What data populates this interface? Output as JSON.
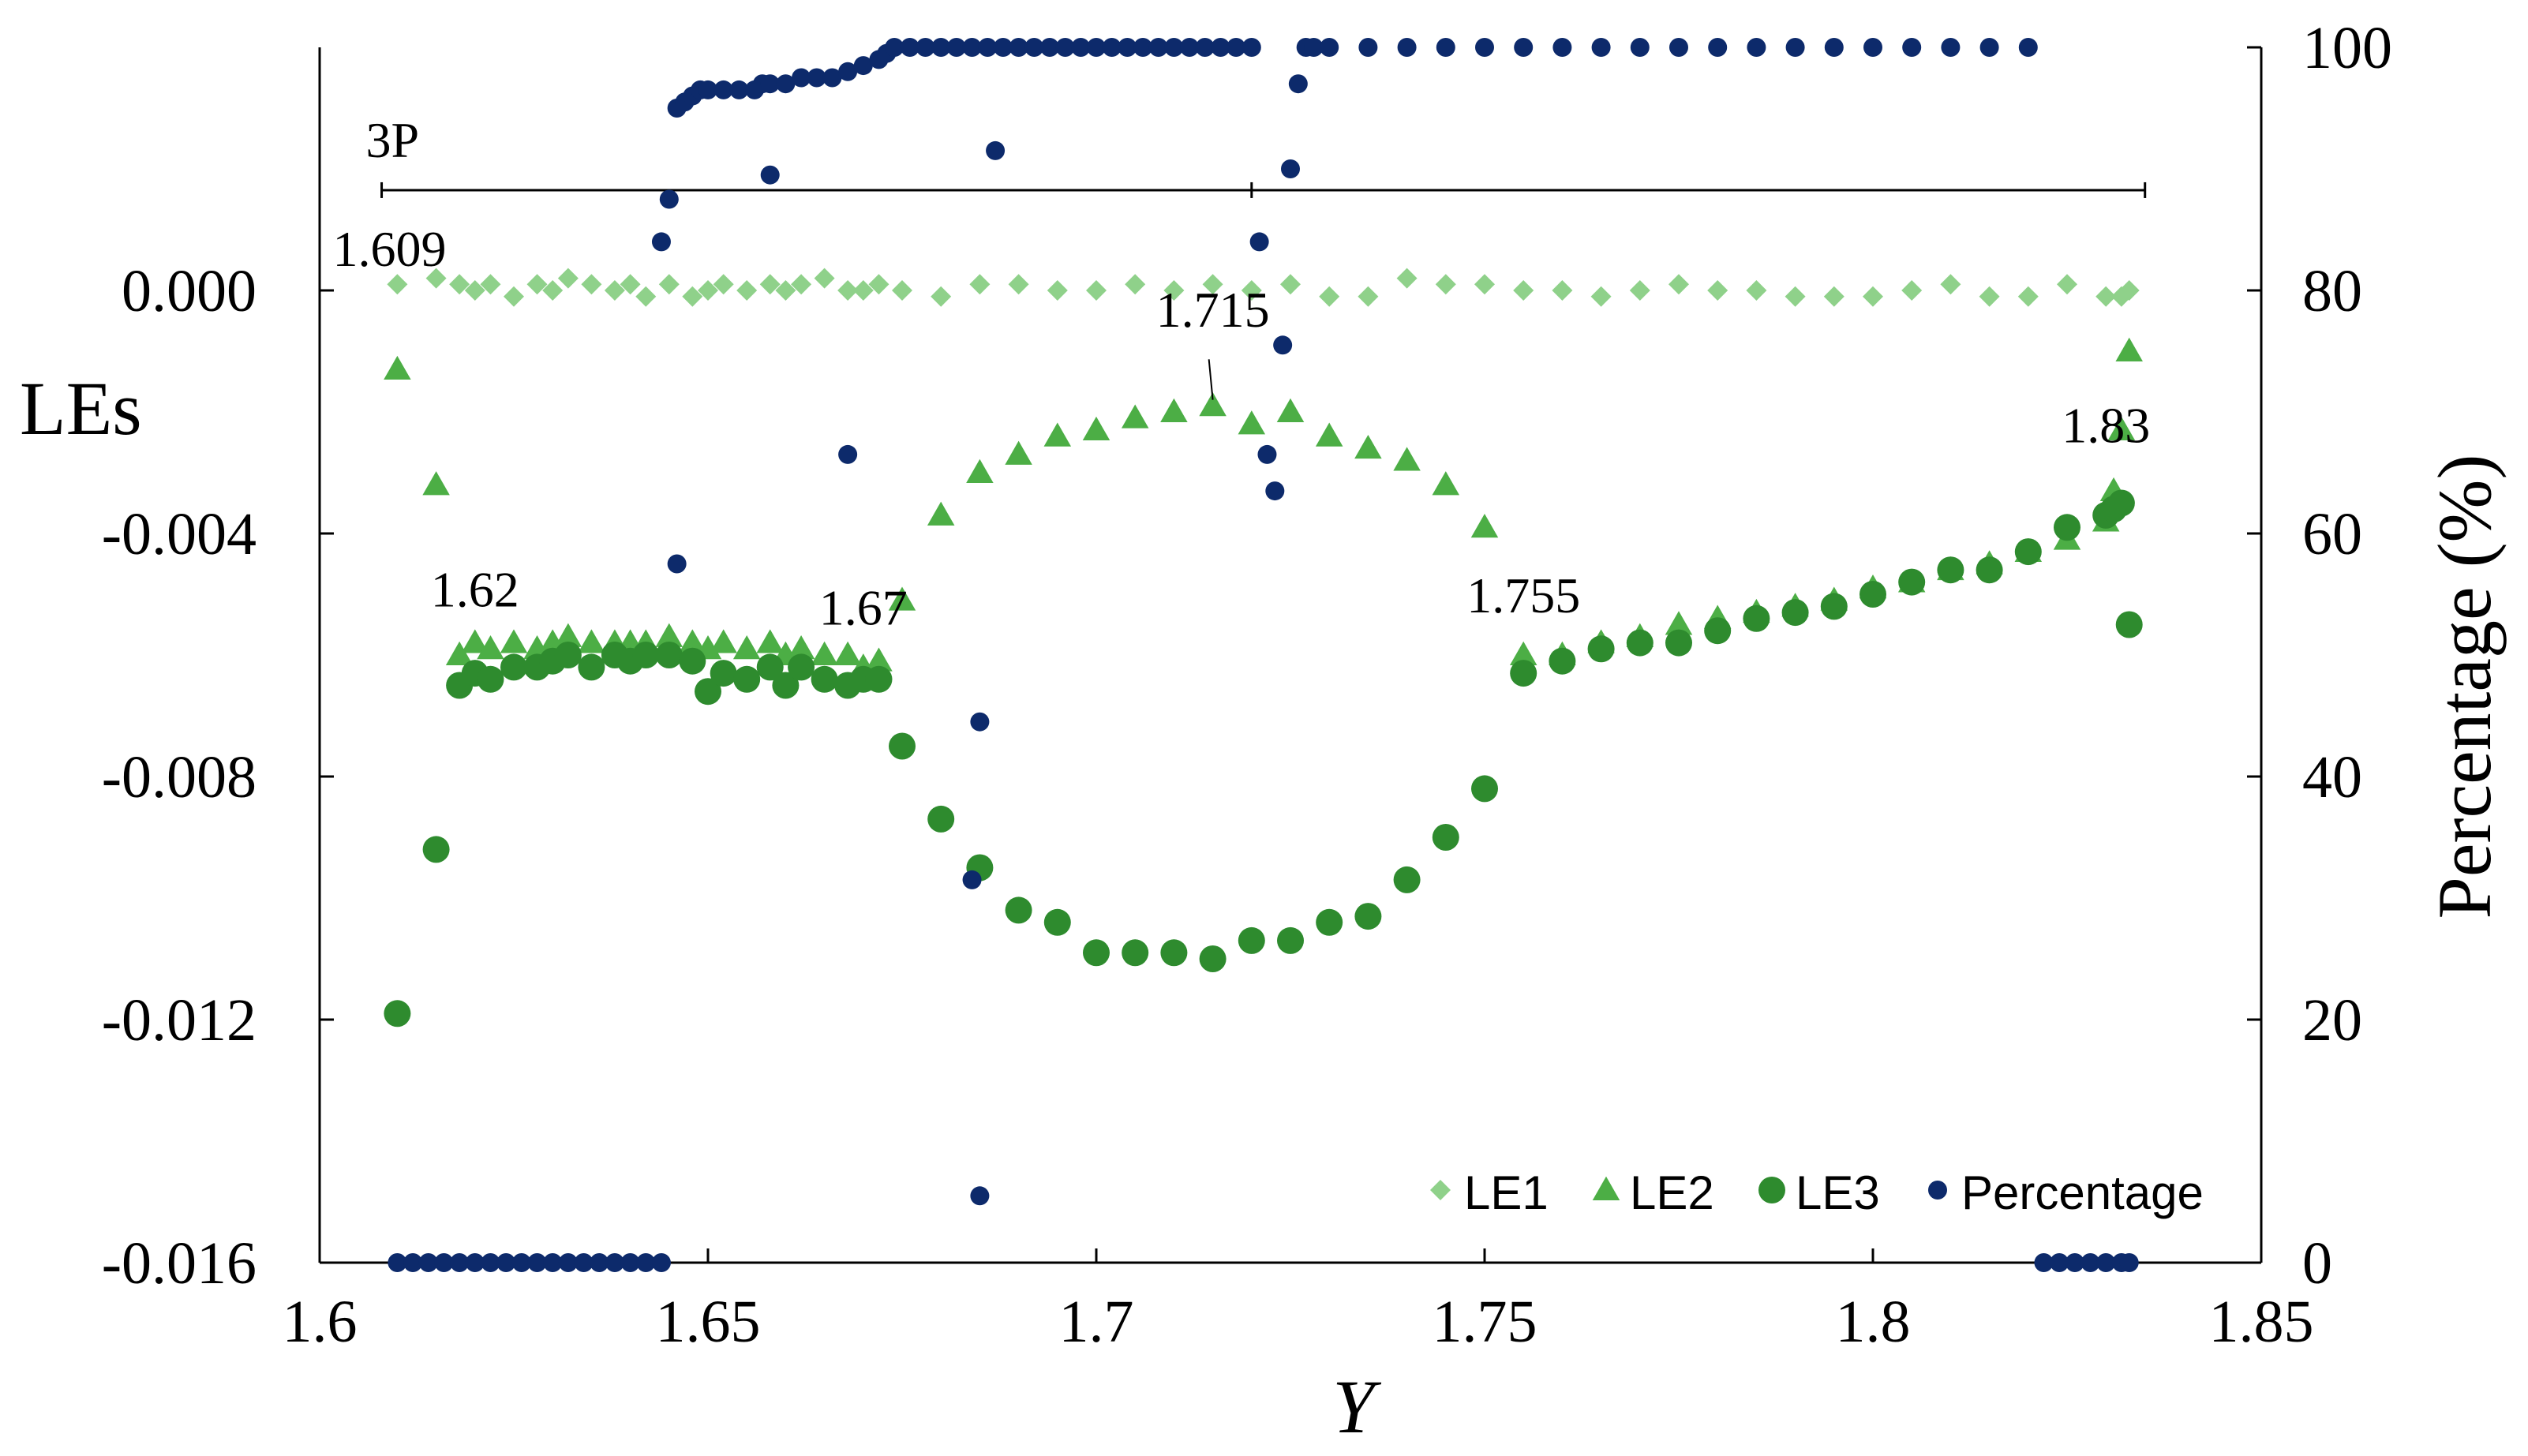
{
  "chart_data": {
    "type": "scatter",
    "title": "",
    "xlabel": "Y",
    "ylabel_left": "LEs",
    "ylabel_right": "Percentage (%)",
    "xlim": [
      1.6,
      1.85
    ],
    "ylim_left": [
      -0.016,
      0.004
    ],
    "ylim_right": [
      0,
      100
    ],
    "x_ticks": [
      "1.6",
      "1.65",
      "1.7",
      "1.75",
      "1.8",
      "1.85"
    ],
    "x_tick_values": [
      1.6,
      1.65,
      1.7,
      1.75,
      1.8,
      1.85
    ],
    "y_left_ticks": [
      "0.000",
      "-0.004",
      "-0.008",
      "-0.012",
      "-0.016"
    ],
    "y_left_tick_values": [
      0.0,
      -0.004,
      -0.008,
      -0.012,
      -0.016
    ],
    "y_right_ticks": [
      "100",
      "80",
      "60",
      "40",
      "20",
      "0"
    ],
    "y_right_tick_values": [
      100,
      80,
      60,
      40,
      20,
      0
    ],
    "grid": false,
    "legend_placement": "bottom-right",
    "colors": {
      "LE1": "#8fd18a",
      "LE2": "#4cae45",
      "LE3": "#2e8b2e",
      "Percentage": "#0d2a6b"
    },
    "period_bar": {
      "label": "3P",
      "x_range": [
        1.609,
        1.833
      ],
      "y_value": 0.00165,
      "mid_tick": 1.72
    },
    "annotations": [
      {
        "text": "1.609",
        "x": 1.609,
        "y": 0.0004
      },
      {
        "text": "1.62",
        "x": 1.62,
        "y": -0.0052
      },
      {
        "text": "1.67",
        "x": 1.67,
        "y": -0.0055
      },
      {
        "text": "1.715",
        "x": 1.715,
        "y": -0.0006
      },
      {
        "text": "1.755",
        "x": 1.755,
        "y": -0.0053
      },
      {
        "text": "1.83",
        "x": 1.83,
        "y": -0.0025
      }
    ],
    "series": [
      {
        "name": "LE1",
        "marker": "diamond",
        "x": [
          1.61,
          1.615,
          1.618,
          1.62,
          1.622,
          1.625,
          1.628,
          1.63,
          1.632,
          1.635,
          1.638,
          1.64,
          1.642,
          1.645,
          1.648,
          1.65,
          1.652,
          1.655,
          1.658,
          1.66,
          1.662,
          1.665,
          1.668,
          1.67,
          1.672,
          1.675,
          1.68,
          1.685,
          1.69,
          1.695,
          1.7,
          1.705,
          1.71,
          1.715,
          1.72,
          1.725,
          1.73,
          1.735,
          1.74,
          1.745,
          1.75,
          1.755,
          1.76,
          1.765,
          1.77,
          1.775,
          1.78,
          1.785,
          1.79,
          1.795,
          1.8,
          1.805,
          1.81,
          1.815,
          1.82,
          1.825,
          1.83,
          1.832,
          1.833
        ],
        "y": [
          0.0001,
          0.0002,
          0.0001,
          0.0,
          0.0001,
          -0.0001,
          0.0001,
          0.0,
          0.0002,
          0.0001,
          0.0,
          0.0001,
          -0.0001,
          0.0001,
          -0.0001,
          0.0,
          0.0001,
          0.0,
          0.0001,
          0.0,
          0.0001,
          0.0002,
          0.0,
          0.0,
          0.0001,
          0.0,
          -0.0001,
          0.0001,
          0.0001,
          0.0,
          0.0,
          0.0001,
          0.0,
          0.0001,
          0.0,
          0.0001,
          -0.0001,
          -0.0001,
          0.0002,
          0.0001,
          0.0001,
          0.0,
          0.0,
          -0.0001,
          0.0,
          0.0001,
          0.0,
          0.0,
          -0.0001,
          -0.0001,
          -0.0001,
          0.0,
          0.0001,
          -0.0001,
          -0.0001,
          0.0001,
          -0.0001,
          -0.0001,
          0.0
        ]
      },
      {
        "name": "LE2",
        "marker": "triangle",
        "x": [
          1.61,
          1.615,
          1.618,
          1.62,
          1.622,
          1.625,
          1.628,
          1.63,
          1.632,
          1.635,
          1.638,
          1.64,
          1.642,
          1.645,
          1.648,
          1.65,
          1.652,
          1.655,
          1.658,
          1.66,
          1.662,
          1.665,
          1.668,
          1.67,
          1.672,
          1.675,
          1.68,
          1.685,
          1.69,
          1.695,
          1.7,
          1.705,
          1.71,
          1.715,
          1.72,
          1.725,
          1.73,
          1.735,
          1.74,
          1.745,
          1.75,
          1.755,
          1.76,
          1.765,
          1.77,
          1.775,
          1.78,
          1.785,
          1.79,
          1.795,
          1.8,
          1.805,
          1.81,
          1.815,
          1.82,
          1.825,
          1.83,
          1.831,
          1.832,
          1.833
        ],
        "y": [
          -0.0013,
          -0.0032,
          -0.006,
          -0.0058,
          -0.0059,
          -0.0058,
          -0.0059,
          -0.0058,
          -0.0057,
          -0.0058,
          -0.0058,
          -0.0058,
          -0.0058,
          -0.0057,
          -0.0058,
          -0.0059,
          -0.0058,
          -0.0059,
          -0.0058,
          -0.006,
          -0.0059,
          -0.006,
          -0.006,
          -0.0062,
          -0.0061,
          -0.0051,
          -0.0037,
          -0.003,
          -0.0027,
          -0.0024,
          -0.0023,
          -0.0021,
          -0.002,
          -0.0019,
          -0.0022,
          -0.002,
          -0.0024,
          -0.0026,
          -0.0028,
          -0.0032,
          -0.0039,
          -0.006,
          -0.006,
          -0.0058,
          -0.0057,
          -0.0055,
          -0.0054,
          -0.0053,
          -0.0052,
          -0.0051,
          -0.0049,
          -0.0048,
          -0.0046,
          -0.0045,
          -0.0043,
          -0.0041,
          -0.0038,
          -0.0033,
          -0.0023,
          -0.001
        ]
      },
      {
        "name": "LE3",
        "marker": "circle",
        "x": [
          1.61,
          1.615,
          1.618,
          1.62,
          1.622,
          1.625,
          1.628,
          1.63,
          1.632,
          1.635,
          1.638,
          1.64,
          1.642,
          1.645,
          1.648,
          1.65,
          1.652,
          1.655,
          1.658,
          1.66,
          1.662,
          1.665,
          1.668,
          1.67,
          1.672,
          1.675,
          1.68,
          1.685,
          1.69,
          1.695,
          1.7,
          1.705,
          1.71,
          1.715,
          1.72,
          1.725,
          1.73,
          1.735,
          1.74,
          1.745,
          1.75,
          1.755,
          1.76,
          1.765,
          1.77,
          1.775,
          1.78,
          1.785,
          1.79,
          1.795,
          1.8,
          1.805,
          1.81,
          1.815,
          1.82,
          1.825,
          1.83,
          1.831,
          1.832,
          1.833
        ],
        "y": [
          -0.0119,
          -0.0092,
          -0.0065,
          -0.0063,
          -0.0064,
          -0.0062,
          -0.0062,
          -0.0061,
          -0.006,
          -0.0062,
          -0.006,
          -0.0061,
          -0.006,
          -0.006,
          -0.0061,
          -0.0066,
          -0.0063,
          -0.0064,
          -0.0062,
          -0.0065,
          -0.0062,
          -0.0064,
          -0.0065,
          -0.0064,
          -0.0064,
          -0.0075,
          -0.0087,
          -0.0095,
          -0.0102,
          -0.0104,
          -0.0109,
          -0.0109,
          -0.0109,
          -0.011,
          -0.0107,
          -0.0107,
          -0.0104,
          -0.0103,
          -0.0097,
          -0.009,
          -0.0082,
          -0.0063,
          -0.0061,
          -0.0059,
          -0.0058,
          -0.0058,
          -0.0056,
          -0.0054,
          -0.0053,
          -0.0052,
          -0.005,
          -0.0048,
          -0.0046,
          -0.0046,
          -0.0043,
          -0.0039,
          -0.0037,
          -0.0036,
          -0.0035,
          -0.0055
        ]
      },
      {
        "name": "Percentage",
        "marker": "circle",
        "axis": "right",
        "x": [
          1.61,
          1.612,
          1.614,
          1.616,
          1.618,
          1.62,
          1.622,
          1.624,
          1.626,
          1.628,
          1.63,
          1.632,
          1.634,
          1.636,
          1.638,
          1.64,
          1.642,
          1.644,
          1.645,
          1.646,
          1.647,
          1.648,
          1.649,
          1.65,
          1.652,
          1.654,
          1.656,
          1.657,
          1.658,
          1.66,
          1.662,
          1.664,
          1.666,
          1.668,
          1.67,
          1.672,
          1.673,
          1.674,
          1.676,
          1.678,
          1.68,
          1.682,
          1.684,
          1.686,
          1.688,
          1.69,
          1.692,
          1.694,
          1.696,
          1.698,
          1.7,
          1.702,
          1.704,
          1.706,
          1.708,
          1.71,
          1.712,
          1.714,
          1.716,
          1.718,
          1.72,
          1.721,
          1.722,
          1.723,
          1.724,
          1.725,
          1.726,
          1.727,
          1.728,
          1.73,
          1.735,
          1.74,
          1.745,
          1.75,
          1.755,
          1.76,
          1.765,
          1.77,
          1.775,
          1.78,
          1.785,
          1.79,
          1.795,
          1.8,
          1.805,
          1.81,
          1.815,
          1.82,
          1.822,
          1.824,
          1.826,
          1.828,
          1.83,
          1.832,
          1.833,
          1.644,
          1.646,
          1.684,
          1.685,
          1.685,
          1.687,
          1.658,
          1.668
        ],
        "y": [
          0,
          0,
          0,
          0,
          0,
          0,
          0,
          0,
          0,
          0,
          0,
          0,
          0,
          0,
          0,
          0,
          0,
          0,
          87.5,
          95,
          95.5,
          96,
          96.5,
          96.5,
          96.5,
          96.5,
          96.5,
          97,
          97,
          97,
          97.5,
          97.5,
          97.5,
          98,
          98.5,
          99,
          99.5,
          100,
          100,
          100,
          100,
          100,
          100,
          100,
          100,
          100,
          100,
          100,
          100,
          100,
          100,
          100,
          100,
          100,
          100,
          100,
          100,
          100,
          100,
          100,
          100,
          84,
          66.5,
          63.5,
          75.5,
          90,
          97,
          100,
          100,
          100,
          100,
          100,
          100,
          100,
          100,
          100,
          100,
          100,
          100,
          100,
          100,
          100,
          100,
          100,
          100,
          100,
          100,
          100,
          0,
          0,
          0,
          0,
          0,
          0,
          0,
          84,
          57.5,
          31.5,
          5.5,
          44.5,
          91.5,
          89.5,
          66.5
        ]
      }
    ]
  }
}
